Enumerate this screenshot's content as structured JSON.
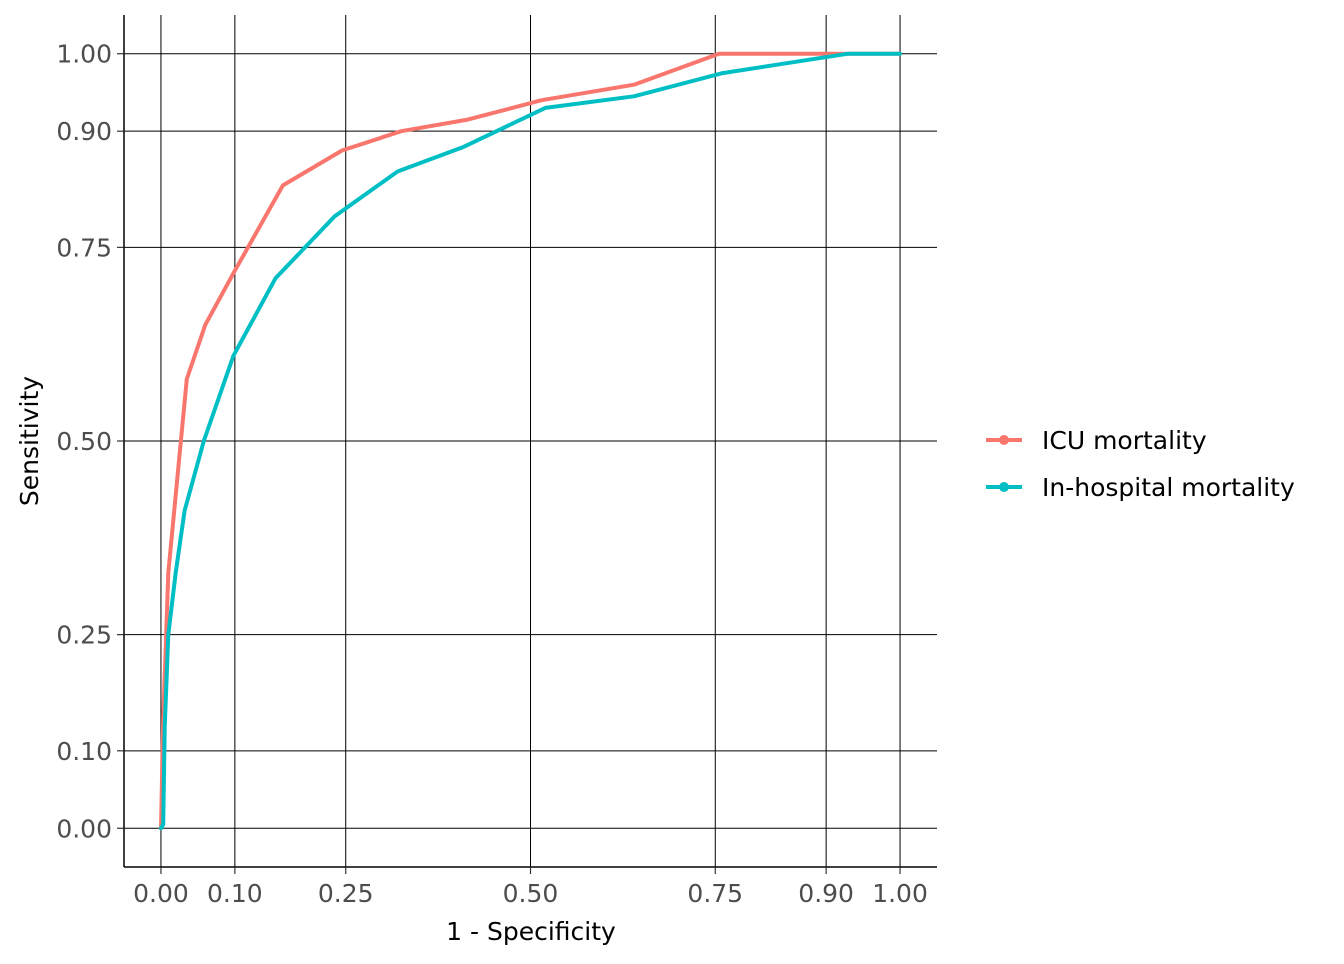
{
  "chart_data": {
    "type": "line",
    "title": "",
    "xlabel": "1 - Specificity",
    "ylabel": "Sensitivity",
    "xlim": [
      -0.05,
      1.05
    ],
    "ylim": [
      -0.05,
      1.05
    ],
    "x_ticks": [
      0.0,
      0.1,
      0.25,
      0.5,
      0.75,
      0.9,
      1.0
    ],
    "x_tick_labels": [
      "0.00",
      "0.10",
      "0.25",
      "0.50",
      "0.75",
      "0.90",
      "1.00"
    ],
    "y_ticks": [
      0.0,
      0.1,
      0.25,
      0.5,
      0.75,
      0.9,
      1.0
    ],
    "y_tick_labels": [
      "0.00",
      "0.10",
      "0.25",
      "0.50",
      "0.75",
      "0.90",
      "1.00"
    ],
    "grid": true,
    "legend_position": "right",
    "series": [
      {
        "name": "ICU mortality",
        "color": "#F8766D",
        "points": [
          [
            0.0,
            0.0
          ],
          [
            0.003,
            0.14
          ],
          [
            0.01,
            0.33
          ],
          [
            0.035,
            0.58
          ],
          [
            0.06,
            0.65
          ],
          [
            0.1,
            0.72
          ],
          [
            0.165,
            0.83
          ],
          [
            0.245,
            0.875
          ],
          [
            0.325,
            0.9
          ],
          [
            0.415,
            0.915
          ],
          [
            0.515,
            0.94
          ],
          [
            0.64,
            0.96
          ],
          [
            0.755,
            1.0
          ],
          [
            0.85,
            1.0
          ],
          [
            1.0,
            1.0
          ]
        ]
      },
      {
        "name": "In-hospital mortality",
        "color": "#00BFC4",
        "points": [
          [
            0.0,
            0.0
          ],
          [
            0.003,
            0.005
          ],
          [
            0.005,
            0.13
          ],
          [
            0.01,
            0.25
          ],
          [
            0.02,
            0.33
          ],
          [
            0.032,
            0.41
          ],
          [
            0.058,
            0.5
          ],
          [
            0.098,
            0.61
          ],
          [
            0.155,
            0.71
          ],
          [
            0.235,
            0.79
          ],
          [
            0.32,
            0.848
          ],
          [
            0.41,
            0.88
          ],
          [
            0.52,
            0.93
          ],
          [
            0.64,
            0.945
          ],
          [
            0.76,
            0.975
          ],
          [
            0.93,
            1.0
          ],
          [
            1.0,
            1.0
          ]
        ]
      }
    ]
  }
}
